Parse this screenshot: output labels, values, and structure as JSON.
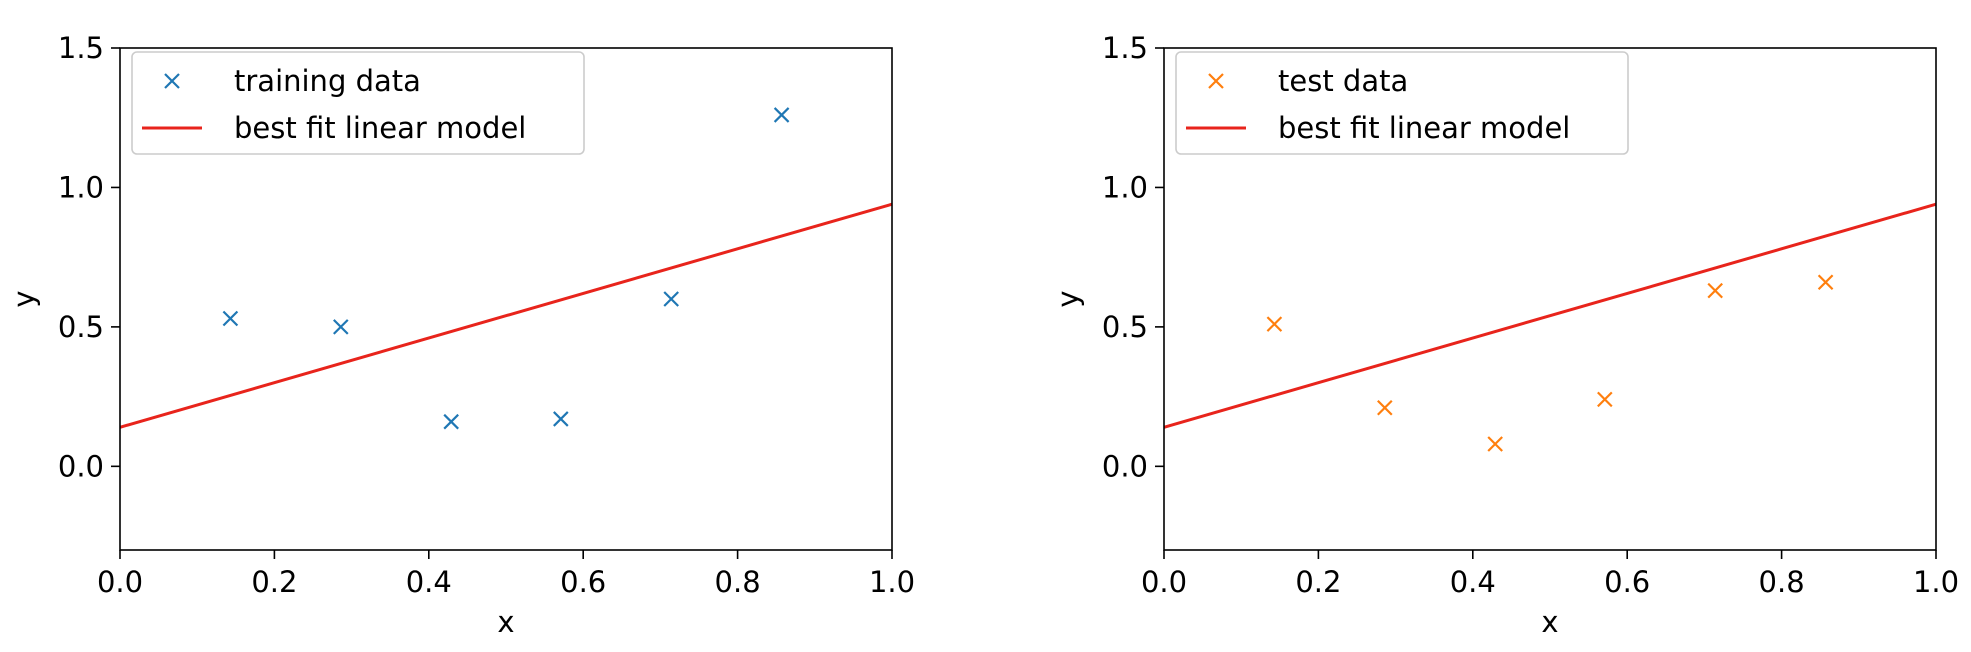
{
  "chart_data": [
    {
      "type": "scatter",
      "xlabel": "x",
      "ylabel": "y",
      "xlim": [
        0.0,
        1.0
      ],
      "ylim": [
        -0.3,
        1.5
      ],
      "xticks": [
        "0.0",
        "0.2",
        "0.4",
        "0.6",
        "0.8",
        "1.0"
      ],
      "yticks": [
        "0.0",
        "0.5",
        "1.0",
        "1.5"
      ],
      "legend_position": "top-left",
      "grid": false,
      "series": [
        {
          "name": "training data",
          "kind": "scatter",
          "marker": "x",
          "color": "#1f77b4",
          "x": [
            0.143,
            0.286,
            0.429,
            0.571,
            0.714,
            0.857
          ],
          "y": [
            0.53,
            0.5,
            0.16,
            0.17,
            0.6,
            1.26
          ]
        },
        {
          "name": "best fit linear model",
          "kind": "line",
          "color": "#e8241c",
          "x": [
            0.0,
            1.0
          ],
          "y": [
            0.14,
            0.94
          ]
        }
      ]
    },
    {
      "type": "scatter",
      "xlabel": "x",
      "ylabel": "y",
      "xlim": [
        0.0,
        1.0
      ],
      "ylim": [
        -0.3,
        1.5
      ],
      "xticks": [
        "0.0",
        "0.2",
        "0.4",
        "0.6",
        "0.8",
        "1.0"
      ],
      "yticks": [
        "0.0",
        "0.5",
        "1.0",
        "1.5"
      ],
      "legend_position": "top-left",
      "grid": false,
      "series": [
        {
          "name": "test data",
          "kind": "scatter",
          "marker": "x",
          "color": "#ff7f0e",
          "x": [
            0.143,
            0.286,
            0.429,
            0.571,
            0.714,
            0.857
          ],
          "y": [
            0.51,
            0.21,
            0.08,
            0.24,
            0.63,
            0.66
          ]
        },
        {
          "name": "best fit linear model",
          "kind": "line",
          "color": "#e8241c",
          "x": [
            0.0,
            1.0
          ],
          "y": [
            0.14,
            0.94
          ]
        }
      ]
    }
  ]
}
